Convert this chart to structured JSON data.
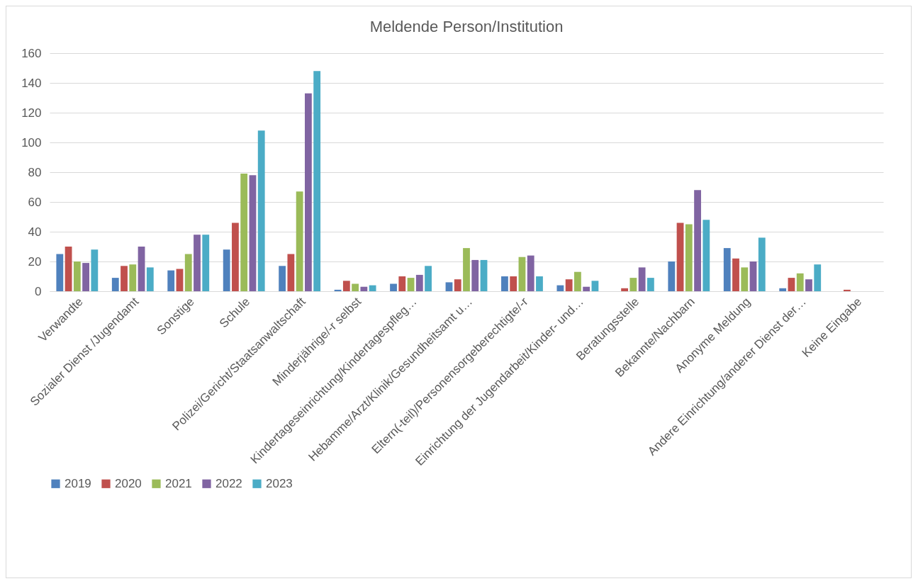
{
  "chart_data": {
    "type": "bar",
    "title": "Meldende Person/Institution",
    "categories": [
      "Verwandte",
      "Sozialer Dienst /Jugendamt",
      "Sonstige",
      "Schule",
      "Polizei/Gericht/Staatsanwaltschaft",
      "Minderjährige/-r selbst",
      "Kindertageseinrichtung/Kindertagespfleg…",
      "Hebamme/Arzt/Klinik/Gesundheitsamt u…",
      "Eltern(-teil)/Personensorgeberechtigte/-r",
      "Einrichtung der Jugendarbeit/Kinder- und…",
      "Beratungsstelle",
      "Bekannte/Nachbarn",
      "Anonyme Meldung",
      "Andere Einrichtung/anderer Dienst der…",
      "Keine Eingabe"
    ],
    "series": [
      {
        "name": "2019",
        "color": "#4f81bd",
        "values": [
          25,
          9,
          14,
          28,
          17,
          1,
          5,
          6,
          10,
          4,
          0,
          20,
          29,
          2,
          0
        ]
      },
      {
        "name": "2020",
        "color": "#c0504d",
        "values": [
          30,
          17,
          15,
          46,
          25,
          7,
          10,
          8,
          10,
          8,
          2,
          46,
          22,
          9,
          1
        ]
      },
      {
        "name": "2021",
        "color": "#9bbb59",
        "values": [
          20,
          18,
          25,
          79,
          67,
          5,
          9,
          29,
          23,
          13,
          9,
          45,
          16,
          12,
          0
        ]
      },
      {
        "name": "2022",
        "color": "#8064a2",
        "values": [
          19,
          30,
          38,
          78,
          133,
          3,
          11,
          21,
          24,
          3,
          16,
          68,
          20,
          8,
          0
        ]
      },
      {
        "name": "2023",
        "color": "#4bacc6",
        "values": [
          28,
          16,
          38,
          108,
          148,
          4,
          17,
          21,
          10,
          7,
          9,
          48,
          36,
          18,
          0
        ]
      }
    ],
    "ylim": [
      0,
      160
    ],
    "yticks": [
      0,
      20,
      40,
      60,
      80,
      100,
      120,
      140,
      160
    ],
    "grid": "y",
    "legend": "bottom"
  }
}
